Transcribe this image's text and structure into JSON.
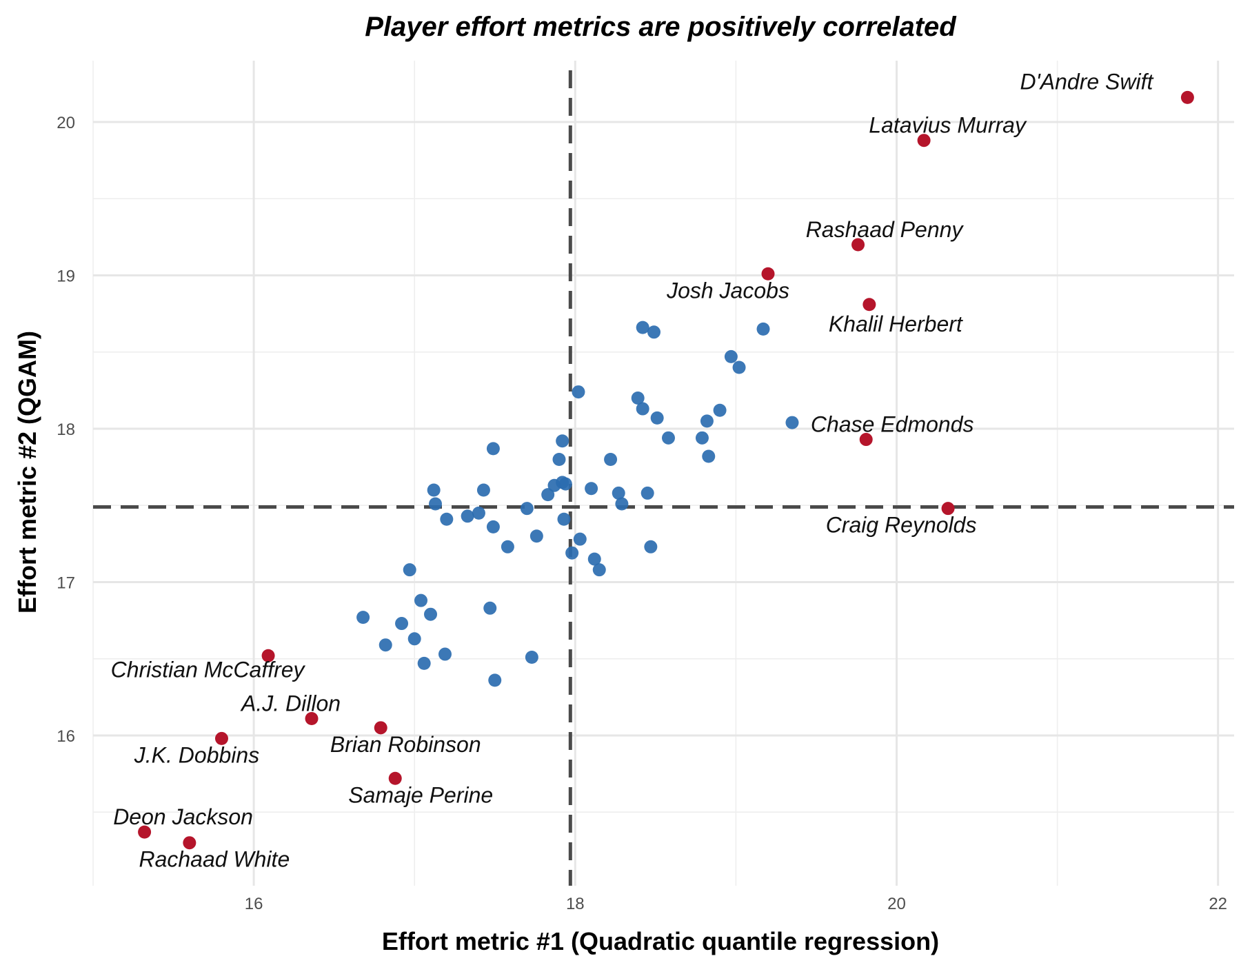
{
  "chart_data": {
    "type": "scatter",
    "title": "Player effort metrics are positively correlated",
    "xlabel": "Effort metric #1 (Quadratic quantile regression)",
    "ylabel": "Effort metric #2 (QGAM)",
    "xlim": [
      15.0,
      22.1
    ],
    "ylim": [
      15.02,
      20.4
    ],
    "xticks": [
      16,
      18,
      20,
      22
    ],
    "yticks": [
      16,
      17,
      18,
      19,
      20
    ],
    "grid": true,
    "legend": "none",
    "reference_lines": {
      "x": 17.97,
      "y": 17.49
    },
    "colors": {
      "other": "#2b6cb0",
      "highlight": "#b5152b",
      "ref_line": "#4a4a4a"
    },
    "points": [
      [
        16.68,
        16.77
      ],
      [
        16.82,
        16.59
      ],
      [
        16.92,
        16.73
      ],
      [
        16.97,
        17.08
      ],
      [
        17.0,
        16.63
      ],
      [
        17.04,
        16.88
      ],
      [
        17.06,
        16.47
      ],
      [
        17.1,
        16.79
      ],
      [
        17.12,
        17.6
      ],
      [
        17.13,
        17.51
      ],
      [
        17.19,
        16.53
      ],
      [
        17.2,
        17.41
      ],
      [
        17.33,
        17.43
      ],
      [
        17.4,
        17.45
      ],
      [
        17.43,
        17.6
      ],
      [
        17.47,
        16.83
      ],
      [
        17.49,
        17.87
      ],
      [
        17.49,
        17.36
      ],
      [
        17.5,
        16.36
      ],
      [
        17.58,
        17.23
      ],
      [
        17.7,
        17.48
      ],
      [
        17.73,
        16.51
      ],
      [
        17.76,
        17.3
      ],
      [
        17.83,
        17.57
      ],
      [
        17.87,
        17.63
      ],
      [
        17.9,
        17.8
      ],
      [
        17.92,
        17.92
      ],
      [
        17.92,
        17.65
      ],
      [
        17.93,
        17.41
      ],
      [
        17.94,
        17.64
      ],
      [
        17.98,
        17.19
      ],
      [
        18.02,
        18.24
      ],
      [
        18.03,
        17.28
      ],
      [
        18.1,
        17.61
      ],
      [
        18.12,
        17.15
      ],
      [
        18.15,
        17.08
      ],
      [
        18.22,
        17.8
      ],
      [
        18.27,
        17.58
      ],
      [
        18.29,
        17.51
      ],
      [
        18.39,
        18.2
      ],
      [
        18.42,
        18.66
      ],
      [
        18.42,
        18.13
      ],
      [
        18.45,
        17.58
      ],
      [
        18.47,
        17.23
      ],
      [
        18.49,
        18.63
      ],
      [
        18.51,
        18.07
      ],
      [
        18.58,
        17.94
      ],
      [
        18.79,
        17.94
      ],
      [
        18.82,
        18.05
      ],
      [
        18.83,
        17.82
      ],
      [
        18.9,
        18.12
      ],
      [
        18.97,
        18.47
      ],
      [
        19.02,
        18.4
      ],
      [
        19.17,
        18.65
      ],
      [
        19.35,
        18.04
      ]
    ],
    "highlighted": [
      {
        "name": "D'Andre Swift",
        "x": 21.81,
        "y": 20.16
      },
      {
        "name": "Latavius Murray",
        "x": 20.17,
        "y": 19.88
      },
      {
        "name": "Rashaad Penny",
        "x": 19.76,
        "y": 19.2
      },
      {
        "name": "Josh Jacobs",
        "x": 19.2,
        "y": 19.01
      },
      {
        "name": "Khalil Herbert",
        "x": 19.83,
        "y": 18.81
      },
      {
        "name": "Chase Edmonds",
        "x": 19.81,
        "y": 17.93
      },
      {
        "name": "Craig Reynolds",
        "x": 20.32,
        "y": 17.48
      },
      {
        "name": "Christian McCaffrey",
        "x": 16.09,
        "y": 16.52
      },
      {
        "name": "A.J. Dillon",
        "x": 16.36,
        "y": 16.11
      },
      {
        "name": "Brian Robinson",
        "x": 16.79,
        "y": 16.05
      },
      {
        "name": "J.K. Dobbins",
        "x": 15.8,
        "y": 15.98
      },
      {
        "name": "Samaje Perine",
        "x": 16.88,
        "y": 15.72
      },
      {
        "name": "Deon Jackson",
        "x": 15.32,
        "y": 15.37
      },
      {
        "name": "Rachaad White",
        "x": 15.6,
        "y": 15.3
      }
    ]
  }
}
